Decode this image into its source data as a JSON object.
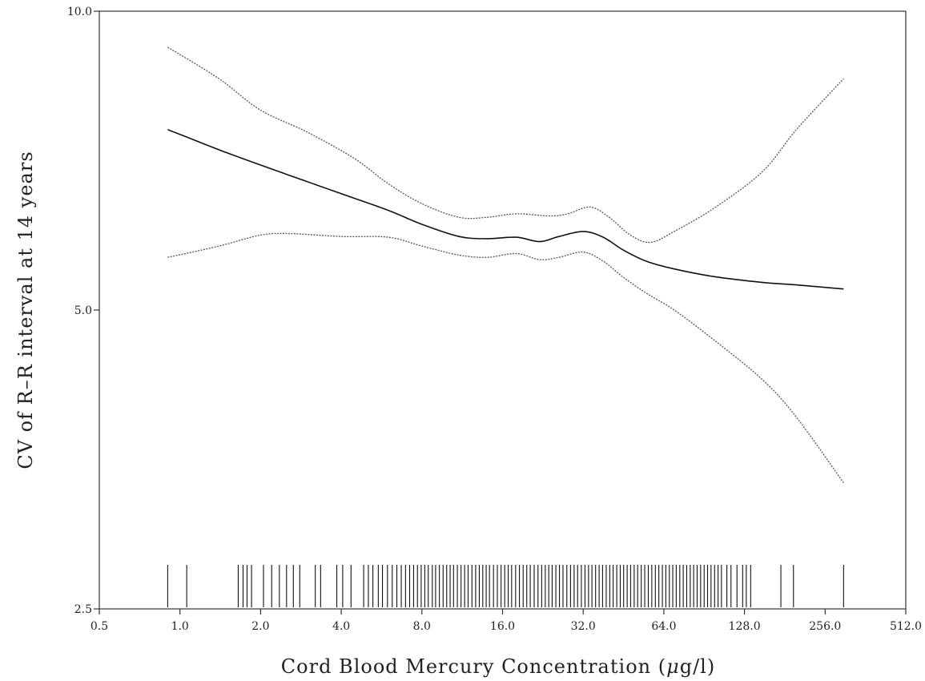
{
  "chart_data": {
    "type": "line",
    "title": "",
    "xlabel_prefix": "Cord Blood  Mercury Concentration (",
    "xlabel_mu": "μ",
    "xlabel_suffix": "g/l)",
    "ylabel": "CV of R–R interval at 14 years",
    "x_scale": "log2",
    "y_scale": "log",
    "xlim": [
      0.5,
      512
    ],
    "ylim": [
      2.5,
      10
    ],
    "x_ticks": [
      0.5,
      1,
      2,
      4,
      8,
      16,
      32,
      64,
      128,
      256,
      512
    ],
    "x_tick_labels": [
      "0.5",
      "1.0",
      "2.0",
      "4.0",
      "8.0",
      "16.0",
      "32.0",
      "64.0",
      "128.0",
      "256.0",
      "512.0"
    ],
    "y_ticks": [
      2.5,
      5,
      10
    ],
    "y_tick_labels": [
      "2.5",
      "5.0",
      "10.0"
    ],
    "grid": false,
    "series": [
      {
        "role": "estimate",
        "style": "solid",
        "points": [
          [
            0.9,
            7.6
          ],
          [
            1.5,
            7.2
          ],
          [
            2.5,
            6.85
          ],
          [
            4,
            6.55
          ],
          [
            6,
            6.3
          ],
          [
            8,
            6.1
          ],
          [
            11,
            5.93
          ],
          [
            14,
            5.9
          ],
          [
            18,
            5.92
          ],
          [
            22,
            5.86
          ],
          [
            26,
            5.93
          ],
          [
            32,
            6.0
          ],
          [
            38,
            5.92
          ],
          [
            45,
            5.75
          ],
          [
            55,
            5.6
          ],
          [
            70,
            5.5
          ],
          [
            100,
            5.4
          ],
          [
            150,
            5.33
          ],
          [
            200,
            5.3
          ],
          [
            300,
            5.25
          ]
        ]
      },
      {
        "role": "upper",
        "style": "dotted",
        "points": [
          [
            0.9,
            9.2
          ],
          [
            1.4,
            8.55
          ],
          [
            2.0,
            7.95
          ],
          [
            3.0,
            7.55
          ],
          [
            4.5,
            7.1
          ],
          [
            6,
            6.7
          ],
          [
            8,
            6.4
          ],
          [
            11,
            6.2
          ],
          [
            14,
            6.2
          ],
          [
            18,
            6.25
          ],
          [
            24,
            6.22
          ],
          [
            28,
            6.25
          ],
          [
            34,
            6.35
          ],
          [
            40,
            6.2
          ],
          [
            48,
            5.95
          ],
          [
            57,
            5.85
          ],
          [
            70,
            6.0
          ],
          [
            100,
            6.35
          ],
          [
            150,
            6.9
          ],
          [
            200,
            7.6
          ],
          [
            300,
            8.55
          ]
        ]
      },
      {
        "role": "lower",
        "style": "dotted",
        "points": [
          [
            0.9,
            5.65
          ],
          [
            1.4,
            5.8
          ],
          [
            2.0,
            5.95
          ],
          [
            2.6,
            5.97
          ],
          [
            4,
            5.93
          ],
          [
            6,
            5.92
          ],
          [
            8,
            5.8
          ],
          [
            11,
            5.68
          ],
          [
            14,
            5.65
          ],
          [
            18,
            5.7
          ],
          [
            22,
            5.62
          ],
          [
            26,
            5.65
          ],
          [
            32,
            5.72
          ],
          [
            38,
            5.6
          ],
          [
            45,
            5.4
          ],
          [
            55,
            5.2
          ],
          [
            70,
            5.0
          ],
          [
            100,
            4.65
          ],
          [
            150,
            4.25
          ],
          [
            200,
            3.9
          ],
          [
            300,
            3.35
          ]
        ]
      }
    ],
    "rug_x": [
      0.9,
      1.06,
      1.65,
      1.72,
      1.78,
      1.85,
      2.05,
      2.2,
      2.35,
      2.5,
      2.65,
      2.8,
      3.2,
      3.35,
      3.85,
      4.05,
      4.35,
      4.85,
      5.05,
      5.25,
      5.5,
      5.7,
      5.95,
      6.2,
      6.45,
      6.7,
      6.95,
      7.2,
      7.45,
      7.7,
      7.95,
      8.2,
      8.45,
      8.75,
      9.0,
      9.3,
      9.6,
      9.9,
      10.2,
      10.5,
      10.85,
      11.2,
      11.55,
      11.9,
      12.3,
      12.7,
      13.1,
      13.5,
      13.9,
      14.3,
      14.8,
      15.3,
      15.8,
      16.3,
      16.8,
      17.3,
      17.9,
      18.5,
      19.1,
      19.7,
      20.3,
      21.0,
      21.7,
      22.4,
      23.1,
      23.8,
      24.5,
      25.3,
      26.1,
      26.9,
      27.8,
      28.7,
      29.6,
      30.5,
      31.5,
      32.5,
      33.5,
      34.5,
      35.6,
      36.7,
      37.8,
      39.0,
      40.2,
      41.4,
      42.7,
      44.0,
      45.3,
      46.7,
      48.1,
      49.6,
      51.1,
      52.7,
      54.3,
      56.0,
      57.7,
      59.5,
      61.3,
      63.2,
      65.1,
      67.1,
      69.1,
      71.2,
      73.4,
      75.6,
      77.9,
      80.3,
      82.7,
      85.2,
      87.8,
      90.5,
      93.2,
      96.0,
      99.0,
      102,
      105,
      110,
      114,
      120,
      126,
      130,
      135,
      175,
      195,
      300
    ]
  }
}
